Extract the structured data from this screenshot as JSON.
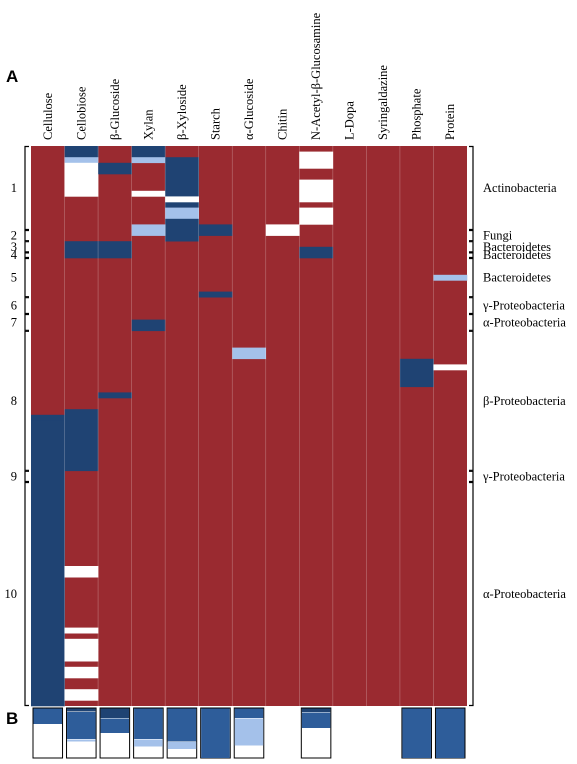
{
  "panels": {
    "a": "A",
    "b": "B"
  },
  "chart_data": {
    "type": "heatmap",
    "columns": [
      "Cellulose",
      "Cellobiose",
      "β-Glucoside",
      "Xylan",
      "β-Xyloside",
      "Starch",
      "α-Glucoside",
      "Chitin",
      "N-Acetyl-β-Glucosamine",
      "L-Dopa",
      "Syringaldazine",
      "Phosphate",
      "Protein"
    ],
    "row_count": 100,
    "colors": {
      "background": "#9a2a30",
      "dark": "#1f4373",
      "mid": "#2e5d9a",
      "light": "#a4c1ea",
      "white": "#ffffff"
    },
    "cells": [
      [
        1,
        0,
        2,
        "dark"
      ],
      [
        1,
        2,
        3,
        "light"
      ],
      [
        1,
        3,
        9,
        "white"
      ],
      [
        2,
        3,
        5,
        "dark"
      ],
      [
        3,
        0,
        2,
        "dark"
      ],
      [
        3,
        2,
        3,
        "light"
      ],
      [
        3,
        8,
        9,
        "white"
      ],
      [
        4,
        2,
        11,
        "dark"
      ],
      [
        4,
        11,
        13,
        "light"
      ],
      [
        4,
        13,
        17,
        "dark"
      ],
      [
        8,
        1,
        4,
        "white"
      ],
      [
        8,
        6,
        10,
        "white"
      ],
      [
        8,
        11,
        14,
        "white"
      ],
      [
        0,
        48,
        49,
        "dark"
      ],
      [
        0,
        49,
        100,
        "dark"
      ],
      [
        1,
        17,
        20,
        "dark"
      ],
      [
        1,
        47,
        58,
        "dark"
      ],
      [
        1,
        89,
        90,
        "white"
      ],
      [
        2,
        17,
        20,
        "dark"
      ],
      [
        2,
        44,
        45,
        "dark"
      ],
      [
        3,
        14,
        16,
        "light"
      ],
      [
        3,
        31,
        33,
        "dark"
      ],
      [
        4,
        9,
        10,
        "white"
      ],
      [
        5,
        14,
        16,
        "dark"
      ],
      [
        5,
        26,
        27,
        "dark"
      ],
      [
        6,
        36,
        38,
        "light"
      ],
      [
        7,
        14,
        16,
        "white"
      ],
      [
        8,
        18,
        20,
        "dark"
      ],
      [
        11,
        38,
        43,
        "dark"
      ],
      [
        12,
        23,
        24,
        "light"
      ],
      [
        12,
        39,
        40,
        "white"
      ],
      [
        1,
        75,
        77,
        "white"
      ],
      [
        1,
        86,
        87,
        "white"
      ],
      [
        1,
        88,
        89,
        "white"
      ],
      [
        1,
        90,
        92,
        "white"
      ],
      [
        1,
        93,
        95,
        "white"
      ],
      [
        1,
        97,
        99,
        "white"
      ]
    ]
  },
  "row_labels": [
    {
      "num": "1",
      "group": "Actinobacteria"
    },
    {
      "num": "2",
      "group": "Fungi"
    },
    {
      "num": "3",
      "group": "Bacteroidetes"
    },
    {
      "num": "4",
      "group": "Bacteroidetes"
    },
    {
      "num": "5",
      "group": "Bacteroidetes"
    },
    {
      "num": "6",
      "group": "γ-Proteobacteria"
    },
    {
      "num": "7",
      "group": "α-Proteobacteria"
    },
    {
      "num": "8",
      "group": "β-Proteobacteria"
    },
    {
      "num": "9",
      "group": "γ-Proteobacteria"
    },
    {
      "num": "10",
      "group": "α-Proteobacteria"
    }
  ],
  "summary_bars": {
    "columns": [
      "Cellulose",
      "Cellobiose",
      "β-Glucoside",
      "Xylan",
      "β-Xyloside",
      "Starch",
      "α-Glucoside",
      "Chitin",
      "N-Acetyl-β-Glucosamine",
      "L-Dopa",
      "Syringaldazine",
      "Phosphate",
      "Protein"
    ],
    "fractions": [
      {
        "dark": 0.0,
        "mid": 0.32,
        "light": 0.0
      },
      {
        "dark": 0.07,
        "mid": 0.55,
        "light": 0.05
      },
      {
        "dark": 0.2,
        "mid": 0.3,
        "light": 0.0
      },
      {
        "dark": 0.0,
        "mid": 0.62,
        "light": 0.15
      },
      {
        "dark": 0.0,
        "mid": 0.67,
        "light": 0.15
      },
      {
        "dark": 0.0,
        "mid": 1.0,
        "light": 0.0
      },
      {
        "dark": 0.0,
        "mid": 0.2,
        "light": 0.55
      },
      null,
      {
        "dark": 0.08,
        "mid": 0.32,
        "light": 0.0
      },
      null,
      null,
      {
        "dark": 0.0,
        "mid": 1.0,
        "light": 0.0
      },
      {
        "dark": 0.0,
        "mid": 1.0,
        "light": 0.0
      }
    ]
  }
}
